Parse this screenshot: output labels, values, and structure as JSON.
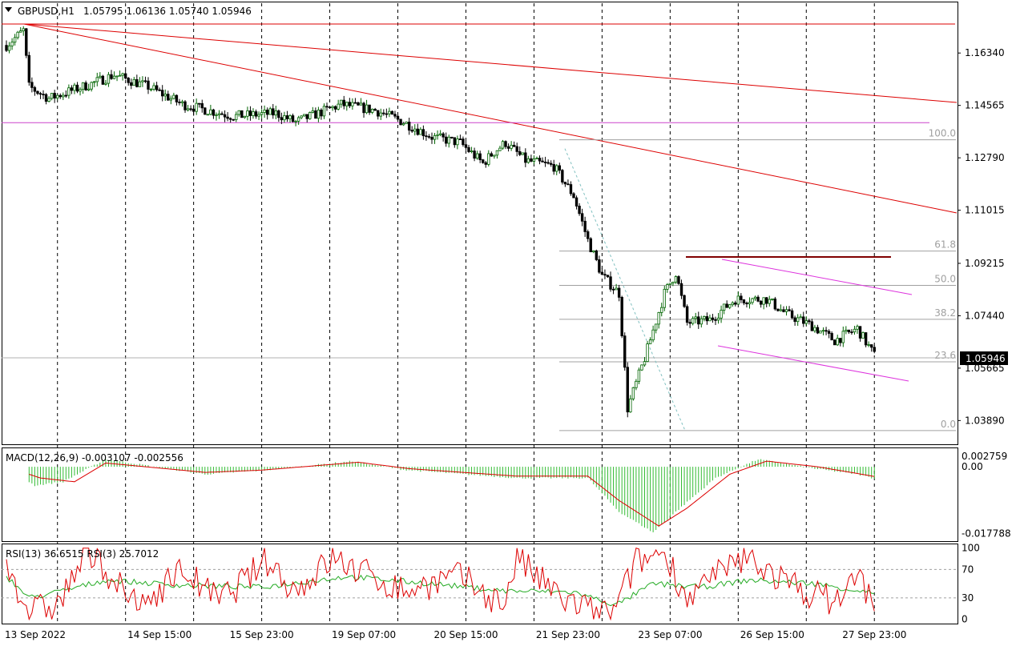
{
  "header": {
    "symbol": "GBPUSD,H1",
    "ohlc": "1.05795 1.06136 1.05740 1.05946",
    "current_price": "1.05946"
  },
  "colors": {
    "bull": "#006400",
    "bear": "#000000",
    "trend_lines": "#dd0000",
    "horizontal": "#cc44cc",
    "channel": "#dd33dd",
    "resistance": "#800000",
    "fib_levels": "#a0a0a0",
    "fib_diag": "#80c0c0",
    "macd_hist": "#33bb33",
    "macd_signal": "#dd0000",
    "rsi13": "#22aa22",
    "rsi3": "#dd0000"
  },
  "chart_data": [
    {
      "type": "candlestick",
      "title": "GBPUSD,H1",
      "ylim": [
        1.0314,
        1.18
      ],
      "y_ticks": [
        "1.16340",
        "1.14565",
        "1.12790",
        "1.11015",
        "1.09215",
        "1.07440",
        "1.05665",
        "1.03890"
      ],
      "x_labels": [
        "13 Sep 2022",
        "14 Sep 15:00",
        "15 Sep 23:00",
        "19 Sep 07:00",
        "20 Sep 15:00",
        "21 Sep 23:00",
        "23 Sep 07:00",
        "26 Sep 15:00",
        "27 Sep 23:00"
      ],
      "grid": "vertical dashed",
      "anchors": [
        [
          0,
          1.166
        ],
        [
          6,
          1.171
        ],
        [
          8,
          1.152
        ],
        [
          15,
          1.148
        ],
        [
          30,
          1.153
        ],
        [
          38,
          1.156
        ],
        [
          50,
          1.152
        ],
        [
          62,
          1.146
        ],
        [
          80,
          1.142
        ],
        [
          95,
          1.143
        ],
        [
          102,
          1.14
        ],
        [
          118,
          1.146
        ],
        [
          130,
          1.144
        ],
        [
          140,
          1.14
        ],
        [
          150,
          1.135
        ],
        [
          160,
          1.133
        ],
        [
          168,
          1.126
        ],
        [
          172,
          1.13
        ],
        [
          176,
          1.133
        ],
        [
          183,
          1.127
        ],
        [
          193,
          1.125
        ],
        [
          200,
          1.115
        ],
        [
          205,
          1.1
        ],
        [
          210,
          1.088
        ],
        [
          216,
          1.082
        ],
        [
          219,
          1.043
        ],
        [
          225,
          1.06
        ],
        [
          232,
          1.082
        ],
        [
          236,
          1.089
        ],
        [
          240,
          1.072
        ],
        [
          248,
          1.073
        ],
        [
          257,
          1.08
        ],
        [
          268,
          1.08
        ],
        [
          275,
          1.075
        ],
        [
          284,
          1.071
        ],
        [
          292,
          1.066
        ],
        [
          300,
          1.07
        ],
        [
          306,
          1.061
        ]
      ],
      "fibonacci": [
        {
          "level": "100.0",
          "price": 1.134
        },
        {
          "level": "61.8",
          "price": 1.0963
        },
        {
          "level": "50.0",
          "price": 1.0847
        },
        {
          "level": "38.2",
          "price": 1.0732
        },
        {
          "level": "23.6",
          "price": 1.0588
        },
        {
          "level": "0.0",
          "price": 1.0355
        }
      ],
      "horizontal_line": 1.1398,
      "resistance_line": 1.0943
    },
    {
      "type": "line",
      "title": "MACD(12,26,9) -0.003107 -0.002556",
      "y_ticks": [
        "0.002759",
        "0.00",
        "-0.017788"
      ],
      "ylim": [
        -0.0194,
        0.0045
      ],
      "series": [
        {
          "name": "histogram",
          "anchors": [
            [
              0,
              0
            ],
            [
              10,
              -0.005
            ],
            [
              20,
              -0.004
            ],
            [
              35,
              0.002
            ],
            [
              70,
              -0.002
            ],
            [
              90,
              -0.001
            ],
            [
              122,
              0.0015
            ],
            [
              140,
              -0.0008
            ],
            [
              180,
              -0.003
            ],
            [
              205,
              -0.003
            ],
            [
              216,
              -0.012
            ],
            [
              228,
              -0.0175
            ],
            [
              236,
              -0.012
            ],
            [
              250,
              -0.003
            ],
            [
              265,
              0.002
            ],
            [
              285,
              -0.0005
            ],
            [
              300,
              -0.002
            ],
            [
              306,
              -0.0031
            ]
          ]
        },
        {
          "name": "signal",
          "anchors": [
            [
              0,
              0
            ],
            [
              12,
              -0.003
            ],
            [
              24,
              -0.004
            ],
            [
              35,
              0.001
            ],
            [
              70,
              -0.0015
            ],
            [
              90,
              -0.0009
            ],
            [
              124,
              0.0012
            ],
            [
              142,
              -0.0005
            ],
            [
              180,
              -0.0025
            ],
            [
              205,
              -0.0025
            ],
            [
              216,
              -0.009
            ],
            [
              230,
              -0.0158
            ],
            [
              240,
              -0.011
            ],
            [
              255,
              -0.002
            ],
            [
              268,
              0.0015
            ],
            [
              286,
              0.0
            ],
            [
              300,
              -0.0018
            ],
            [
              306,
              -0.0026
            ]
          ]
        }
      ]
    },
    {
      "type": "line",
      "title": "RSI(13) 36.6515  RSI(3) 25.7012",
      "y_ticks": [
        "100",
        "70",
        "30",
        "0"
      ],
      "ylim": [
        -5,
        103
      ],
      "levels": [
        70,
        30
      ],
      "series": [
        {
          "name": "RSI(13)",
          "anchors": [
            [
              0,
              60
            ],
            [
              8,
              30
            ],
            [
              20,
              40
            ],
            [
              35,
              55
            ],
            [
              60,
              48
            ],
            [
              90,
              45
            ],
            [
              120,
              60
            ],
            [
              150,
              50
            ],
            [
              175,
              40
            ],
            [
              200,
              38
            ],
            [
              215,
              20
            ],
            [
              228,
              50
            ],
            [
              245,
              45
            ],
            [
              262,
              55
            ],
            [
              285,
              50
            ],
            [
              306,
              36.65
            ]
          ]
        },
        {
          "name": "RSI(3)",
          "anchors": [
            [
              0,
              80
            ],
            [
              8,
              10
            ],
            [
              18,
              20
            ],
            [
              28,
              90
            ],
            [
              34,
              75
            ],
            [
              46,
              15
            ],
            [
              62,
              70
            ],
            [
              75,
              25
            ],
            [
              92,
              82
            ],
            [
              102,
              40
            ],
            [
              115,
              85
            ],
            [
              140,
              40
            ],
            [
              160,
              60
            ],
            [
              175,
              20
            ],
            [
              180,
              85
            ],
            [
              195,
              30
            ],
            [
              207,
              10
            ],
            [
              214,
              8
            ],
            [
              222,
              80
            ],
            [
              232,
              95
            ],
            [
              240,
              30
            ],
            [
              252,
              65
            ],
            [
              262,
              88
            ],
            [
              275,
              50
            ],
            [
              292,
              25
            ],
            [
              300,
              60
            ],
            [
              306,
              25.7
            ]
          ]
        }
      ]
    }
  ]
}
